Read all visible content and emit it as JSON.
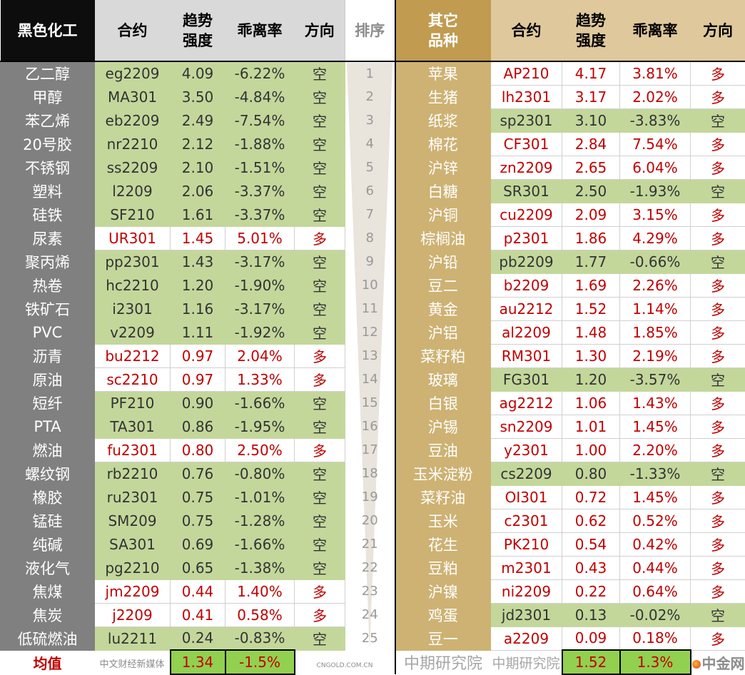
{
  "header": {
    "left_title": "黑色化工",
    "contract": "合约",
    "strength": "趋势强度",
    "strength_l1": "趋势",
    "strength_l2": "强度",
    "deviation": "乖离率",
    "direction": "方向",
    "rank": "排序",
    "right_title_l1": "其它",
    "right_title_l2": "品种"
  },
  "colors": {
    "short_bg": "#c4d79b",
    "long_text": "#c00000",
    "left_name_bg": "#808080",
    "right_name_bg": "#cdb273",
    "avg_bg": "#92d050"
  },
  "left_rows": [
    {
      "name": "乙二醇",
      "contract": "eg2209",
      "strength": "4.09",
      "deviation": "-6.22%",
      "direction": "空"
    },
    {
      "name": "甲醇",
      "contract": "MA301",
      "strength": "3.50",
      "deviation": "-4.84%",
      "direction": "空"
    },
    {
      "name": "苯乙烯",
      "contract": "eb2209",
      "strength": "2.49",
      "deviation": "-7.54%",
      "direction": "空"
    },
    {
      "name": "20号胶",
      "contract": "nr2210",
      "strength": "2.12",
      "deviation": "-1.88%",
      "direction": "空"
    },
    {
      "name": "不锈钢",
      "contract": "ss2209",
      "strength": "2.10",
      "deviation": "-1.51%",
      "direction": "空"
    },
    {
      "name": "塑料",
      "contract": "l2209",
      "strength": "2.06",
      "deviation": "-3.37%",
      "direction": "空"
    },
    {
      "name": "硅铁",
      "contract": "SF210",
      "strength": "1.61",
      "deviation": "-3.37%",
      "direction": "空"
    },
    {
      "name": "尿素",
      "contract": "UR301",
      "strength": "1.45",
      "deviation": "5.01%",
      "direction": "多"
    },
    {
      "name": "聚丙烯",
      "contract": "pp2301",
      "strength": "1.43",
      "deviation": "-3.17%",
      "direction": "空"
    },
    {
      "name": "热卷",
      "contract": "hc2210",
      "strength": "1.20",
      "deviation": "-1.90%",
      "direction": "空"
    },
    {
      "name": "铁矿石",
      "contract": "i2301",
      "strength": "1.16",
      "deviation": "-3.17%",
      "direction": "空"
    },
    {
      "name": "PVC",
      "contract": "v2209",
      "strength": "1.11",
      "deviation": "-1.92%",
      "direction": "空"
    },
    {
      "name": "沥青",
      "contract": "bu2212",
      "strength": "0.97",
      "deviation": "2.04%",
      "direction": "多"
    },
    {
      "name": "原油",
      "contract": "sc2210",
      "strength": "0.97",
      "deviation": "1.33%",
      "direction": "多"
    },
    {
      "name": "短纤",
      "contract": "PF210",
      "strength": "0.90",
      "deviation": "-1.66%",
      "direction": "空"
    },
    {
      "name": "PTA",
      "contract": "TA301",
      "strength": "0.86",
      "deviation": "-1.95%",
      "direction": "空"
    },
    {
      "name": "燃油",
      "contract": "fu2301",
      "strength": "0.80",
      "deviation": "2.50%",
      "direction": "多"
    },
    {
      "name": "螺纹钢",
      "contract": "rb2210",
      "strength": "0.76",
      "deviation": "-0.80%",
      "direction": "空"
    },
    {
      "name": "橡胶",
      "contract": "ru2301",
      "strength": "0.75",
      "deviation": "-1.01%",
      "direction": "空"
    },
    {
      "name": "锰硅",
      "contract": "SM209",
      "strength": "0.75",
      "deviation": "-1.28%",
      "direction": "空"
    },
    {
      "name": "纯碱",
      "contract": "SA301",
      "strength": "0.69",
      "deviation": "-1.66%",
      "direction": "空"
    },
    {
      "name": "液化气",
      "contract": "pg2210",
      "strength": "0.65",
      "deviation": "-1.38%",
      "direction": "空"
    },
    {
      "name": "焦煤",
      "contract": "jm2209",
      "strength": "0.44",
      "deviation": "1.40%",
      "direction": "多"
    },
    {
      "name": "焦炭",
      "contract": "j2209",
      "strength": "0.41",
      "deviation": "0.58%",
      "direction": "多"
    },
    {
      "name": "低硫燃油",
      "contract": "lu2211",
      "strength": "0.24",
      "deviation": "-0.83%",
      "direction": "空"
    }
  ],
  "right_rows": [
    {
      "name": "苹果",
      "contract": "AP210",
      "strength": "4.17",
      "deviation": "3.81%",
      "direction": "多"
    },
    {
      "name": "生猪",
      "contract": "lh2301",
      "strength": "3.17",
      "deviation": "2.02%",
      "direction": "多"
    },
    {
      "name": "纸浆",
      "contract": "sp2301",
      "strength": "3.10",
      "deviation": "-3.83%",
      "direction": "空"
    },
    {
      "name": "棉花",
      "contract": "CF301",
      "strength": "2.84",
      "deviation": "7.54%",
      "direction": "多"
    },
    {
      "name": "沪锌",
      "contract": "zn2209",
      "strength": "2.65",
      "deviation": "6.04%",
      "direction": "多"
    },
    {
      "name": "白糖",
      "contract": "SR301",
      "strength": "2.50",
      "deviation": "-1.93%",
      "direction": "空"
    },
    {
      "name": "沪铜",
      "contract": "cu2209",
      "strength": "2.09",
      "deviation": "3.15%",
      "direction": "多"
    },
    {
      "name": "棕榈油",
      "contract": "p2301",
      "strength": "1.86",
      "deviation": "4.29%",
      "direction": "多"
    },
    {
      "name": "沪铅",
      "contract": "pb2209",
      "strength": "1.77",
      "deviation": "-0.66%",
      "direction": "空"
    },
    {
      "name": "豆二",
      "contract": "b2209",
      "strength": "1.69",
      "deviation": "2.26%",
      "direction": "多"
    },
    {
      "name": "黄金",
      "contract": "au2212",
      "strength": "1.52",
      "deviation": "1.14%",
      "direction": "多"
    },
    {
      "name": "沪铝",
      "contract": "al2209",
      "strength": "1.48",
      "deviation": "1.85%",
      "direction": "多"
    },
    {
      "name": "菜籽粕",
      "contract": "RM301",
      "strength": "1.30",
      "deviation": "2.19%",
      "direction": "多"
    },
    {
      "name": "玻璃",
      "contract": "FG301",
      "strength": "1.20",
      "deviation": "-3.57%",
      "direction": "空"
    },
    {
      "name": "白银",
      "contract": "ag2212",
      "strength": "1.06",
      "deviation": "1.43%",
      "direction": "多"
    },
    {
      "name": "沪锡",
      "contract": "sn2209",
      "strength": "1.01",
      "deviation": "1.45%",
      "direction": "多"
    },
    {
      "name": "豆油",
      "contract": "y2301",
      "strength": "1.00",
      "deviation": "2.20%",
      "direction": "多"
    },
    {
      "name": "玉米淀粉",
      "contract": "cs2209",
      "strength": "0.80",
      "deviation": "-1.33%",
      "direction": "空"
    },
    {
      "name": "菜籽油",
      "contract": "OI301",
      "strength": "0.72",
      "deviation": "1.45%",
      "direction": "多"
    },
    {
      "name": "玉米",
      "contract": "c2301",
      "strength": "0.62",
      "deviation": "0.52%",
      "direction": "多"
    },
    {
      "name": "花生",
      "contract": "PK210",
      "strength": "0.54",
      "deviation": "0.42%",
      "direction": "多"
    },
    {
      "name": "豆粕",
      "contract": "m2301",
      "strength": "0.43",
      "deviation": "0.44%",
      "direction": "多"
    },
    {
      "name": "沪镍",
      "contract": "ni2209",
      "strength": "0.22",
      "deviation": "0.64%",
      "direction": "多"
    },
    {
      "name": "鸡蛋",
      "contract": "jd2301",
      "strength": "0.13",
      "deviation": "-0.02%",
      "direction": "空"
    },
    {
      "name": "豆一",
      "contract": "a2209",
      "strength": "0.09",
      "deviation": "0.18%",
      "direction": "多"
    }
  ],
  "ranks": [
    "1",
    "2",
    "3",
    "4",
    "5",
    "6",
    "7",
    "8",
    "9",
    "10",
    "11",
    "12",
    "13",
    "14",
    "15",
    "16",
    "17",
    "18",
    "19",
    "20",
    "21",
    "22",
    "23",
    "24",
    "25"
  ],
  "average": {
    "label": "均值",
    "left_strength": "1.34",
    "left_deviation": "-1.5%",
    "right_strength": "1.52",
    "right_deviation": "1.3%"
  },
  "watermark": "中期研究院",
  "logo": {
    "name": "中金网",
    "domain": "CNGOLD.COM.CN",
    "slogan": "中文财经新媒体"
  }
}
